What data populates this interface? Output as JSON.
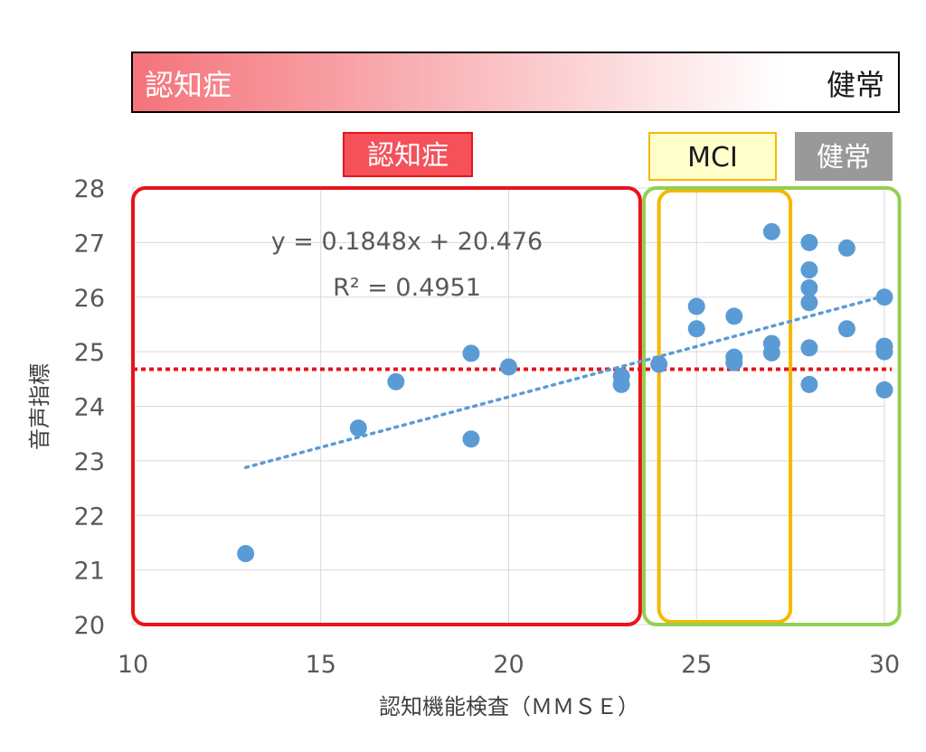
{
  "chart_data": {
    "type": "scatter",
    "xlabel": "認知機能検査（ＭＭＳＥ）",
    "ylabel": "音声指標",
    "xlim": [
      10,
      30
    ],
    "ylim": [
      20,
      28
    ],
    "xticks": [
      10,
      15,
      20,
      25,
      30
    ],
    "yticks": [
      20,
      21,
      22,
      23,
      24,
      25,
      26,
      27,
      28
    ],
    "grid": true,
    "points": [
      [
        13,
        21.3
      ],
      [
        16,
        23.6
      ],
      [
        17,
        24.45
      ],
      [
        19,
        24.97
      ],
      [
        19,
        23.4
      ],
      [
        20,
        24.72
      ],
      [
        23,
        24.55
      ],
      [
        23,
        24.4
      ],
      [
        24,
        24.77
      ],
      [
        25,
        25.83
      ],
      [
        25,
        25.42
      ],
      [
        26,
        25.65
      ],
      [
        26,
        24.9
      ],
      [
        26,
        24.8
      ],
      [
        27,
        27.2
      ],
      [
        27,
        25.15
      ],
      [
        27,
        24.98
      ],
      [
        28,
        27.0
      ],
      [
        28,
        26.5
      ],
      [
        28,
        26.17
      ],
      [
        28,
        25.9
      ],
      [
        28,
        25.07
      ],
      [
        28,
        24.4
      ],
      [
        29,
        26.9
      ],
      [
        29,
        25.42
      ],
      [
        30,
        26.0
      ],
      [
        30,
        25.1
      ],
      [
        30,
        25.0
      ],
      [
        30,
        24.3
      ]
    ],
    "trendline": {
      "type": "linear",
      "slope": 0.1848,
      "intercept": 20.476,
      "x_range": [
        13,
        30
      ],
      "equation": "y = 0.1848x + 20.476",
      "r2": "R² = 0.4951"
    },
    "threshold": {
      "y": 24.68,
      "color": "#e8141b"
    },
    "regions": [
      {
        "key": "dementia",
        "label": "認知症",
        "x_range": [
          10,
          23.5
        ],
        "color": "#e8141b"
      },
      {
        "key": "mci",
        "label": "MCI",
        "x_range": [
          24,
          27.5
        ],
        "color": "#f5b800"
      },
      {
        "key": "healthy",
        "label": "健常",
        "x_range": [
          23.6,
          30.4
        ],
        "color": "#92d050"
      }
    ],
    "point_color": "#5b9bd5"
  },
  "banner": {
    "left_label": "認知症",
    "right_label": "健常"
  },
  "tags": {
    "dementia": {
      "label": "認知症",
      "bg": "#f4515a",
      "border": "#e8141b",
      "text_color": "#ffffff"
    },
    "mci": {
      "label": "MCI",
      "bg": "#ffffcc",
      "border": "#f5b800",
      "text_color": "#1a1a1a"
    },
    "healthy": {
      "label": "健常",
      "bg": "#999999",
      "border": "#999999",
      "text_color": "#ffffff"
    }
  }
}
